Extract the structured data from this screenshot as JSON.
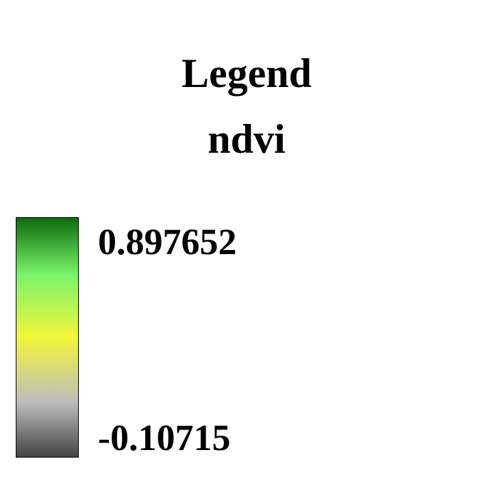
{
  "legend": {
    "title": "Legend",
    "layer_name": "ndvi",
    "max_label": "0.897652",
    "min_label": "-0.10715",
    "ramp_colors": [
      "#0d6b0d",
      "#7af56a",
      "#f2f53a",
      "#bdbdbd",
      "#444444"
    ]
  }
}
